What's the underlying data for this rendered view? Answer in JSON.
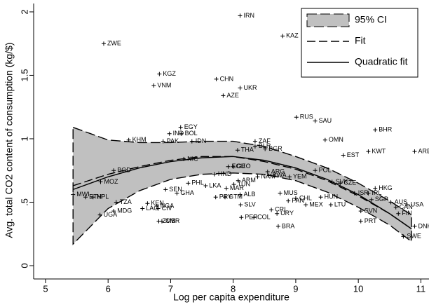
{
  "chart_data": {
    "type": "scatter",
    "x_label": "Log per capita expenditure",
    "y_label": "Avg. total CO2 content of consumption (kg/$)",
    "xlim": [
      4.81,
      11.13
    ],
    "ylim": [
      -0.105,
      2.066
    ],
    "xticks": [
      5,
      6,
      7,
      8,
      9,
      10,
      11
    ],
    "yticks": [
      0,
      {
        "value": 0.5,
        "label": ".5"
      },
      1,
      1.5,
      2
    ],
    "legend": "top-right",
    "points": {
      "labels": [
        "IRN",
        "KAZ",
        "ZWE",
        "KGZ",
        "VNM",
        "CHN",
        "UKR",
        "AZE",
        "RUS",
        "SAU",
        "BHR",
        "EGY",
        "IND",
        "BOL",
        "KHM",
        "PAK",
        "IDN",
        "ZAF",
        "OMN",
        "BLR",
        "BGR",
        "THA",
        "EST",
        "KWT",
        "ARE",
        "NIC",
        "BGD",
        "ECU",
        "GEO",
        "POL",
        "HND",
        "ARG",
        "NAM",
        "BWA",
        "YEM",
        "ARM",
        "SVK",
        "CZE",
        "MOZ",
        "PHL",
        "LKA",
        "TUN",
        "MAR",
        "SEN",
        "GHA",
        "HKG",
        "ISR",
        "IRL",
        "MWI",
        "ETH",
        "NPL",
        "ALB",
        "MUS",
        "PRY",
        "GTM",
        "CHL",
        "HUN",
        "MEX",
        "PAN",
        "LTU",
        "AUS",
        "TZA",
        "KEN",
        "NGA",
        "LAO",
        "CIV",
        "MDG",
        "UGA",
        "SLV",
        "CAN",
        "USA",
        "SVN",
        "CRI",
        "URY",
        "PER",
        "COL",
        "PRT",
        "ZMB",
        "CMR",
        "BRA",
        "FIN",
        "SWE",
        "SGP",
        "DNK"
      ],
      "x": [
        8.11,
        8.79,
        5.93,
        6.82,
        6.73,
        7.73,
        8.11,
        7.84,
        9.01,
        9.31,
        10.27,
        7.16,
        6.98,
        7.17,
        6.33,
        6.88,
        7.34,
        8.35,
        9.47,
        8.35,
        8.51,
        8.07,
        9.76,
        10.16,
        10.9,
        7.21,
        6.09,
        7.92,
        8.0,
        9.31,
        7.7,
        8.55,
        8.39,
        8.57,
        8.9,
        8.08,
        9.58,
        9.71,
        5.88,
        7.28,
        7.56,
        8.01,
        7.89,
        6.92,
        7.1,
        10.27,
        9.94,
        10.16,
        5.44,
        5.64,
        5.76,
        8.11,
        8.75,
        7.72,
        7.87,
        9.0,
        9.4,
        9.16,
        8.88,
        9.56,
        10.52,
        6.13,
        6.63,
        6.78,
        6.55,
        6.8,
        6.09,
        5.87,
        8.12,
        10.6,
        10.78,
        10.04,
        8.61,
        8.7,
        8.13,
        8.33,
        10.04,
        6.81,
        6.86,
        8.72,
        10.64,
        10.72,
        10.21,
        10.9
      ],
      "y": [
        1.97,
        1.81,
        1.75,
        1.51,
        1.42,
        1.47,
        1.4,
        1.34,
        1.17,
        1.14,
        1.07,
        1.09,
        1.04,
        1.04,
        0.99,
        0.98,
        0.98,
        0.98,
        0.99,
        0.94,
        0.92,
        0.91,
        0.87,
        0.9,
        0.9,
        0.84,
        0.75,
        0.78,
        0.78,
        0.75,
        0.72,
        0.74,
        0.7,
        0.71,
        0.7,
        0.67,
        0.66,
        0.65,
        0.66,
        0.65,
        0.63,
        0.64,
        0.61,
        0.6,
        0.57,
        0.61,
        0.57,
        0.57,
        0.56,
        0.54,
        0.54,
        0.56,
        0.57,
        0.54,
        0.54,
        0.53,
        0.54,
        0.48,
        0.51,
        0.48,
        0.5,
        0.5,
        0.49,
        0.47,
        0.45,
        0.45,
        0.43,
        0.4,
        0.48,
        0.46,
        0.48,
        0.43,
        0.44,
        0.41,
        0.38,
        0.38,
        0.35,
        0.35,
        0.35,
        0.31,
        0.41,
        0.23,
        0.52,
        0.31
      ]
    },
    "series": [
      {
        "name": "95% CI",
        "kind": "band",
        "color": "#c0c0c0",
        "x": [
          5.44,
          6,
          6.5,
          7,
          7.5,
          8,
          8.5,
          9,
          9.5,
          10,
          10.5,
          10.85
        ],
        "low": [
          0.17,
          0.45,
          0.59,
          0.68,
          0.72,
          0.73,
          0.72,
          0.67,
          0.58,
          0.46,
          0.32,
          0.19
        ],
        "high": [
          1.09,
          0.99,
          0.97,
          0.97,
          0.98,
          0.98,
          0.94,
          0.86,
          0.77,
          0.65,
          0.51,
          0.4
        ]
      },
      {
        "name": "Fit",
        "kind": "dash",
        "color": "#000000",
        "x": [
          5.44,
          6,
          6.5,
          7,
          7.5,
          8,
          8.5,
          9,
          9.5,
          10,
          10.5,
          10.85
        ],
        "values": [
          0.63,
          0.72,
          0.78,
          0.83,
          0.86,
          0.86,
          0.82,
          0.76,
          0.67,
          0.55,
          0.41,
          0.29
        ]
      },
      {
        "name": "Quadratic fit",
        "kind": "solid",
        "color": "#000000",
        "x": [
          5.44,
          6,
          6.5,
          7,
          7.5,
          8,
          8.5,
          9,
          9.5,
          10,
          10.5,
          10.85
        ],
        "values": [
          0.6,
          0.7,
          0.77,
          0.82,
          0.85,
          0.86,
          0.83,
          0.77,
          0.68,
          0.56,
          0.41,
          0.29
        ]
      }
    ]
  }
}
